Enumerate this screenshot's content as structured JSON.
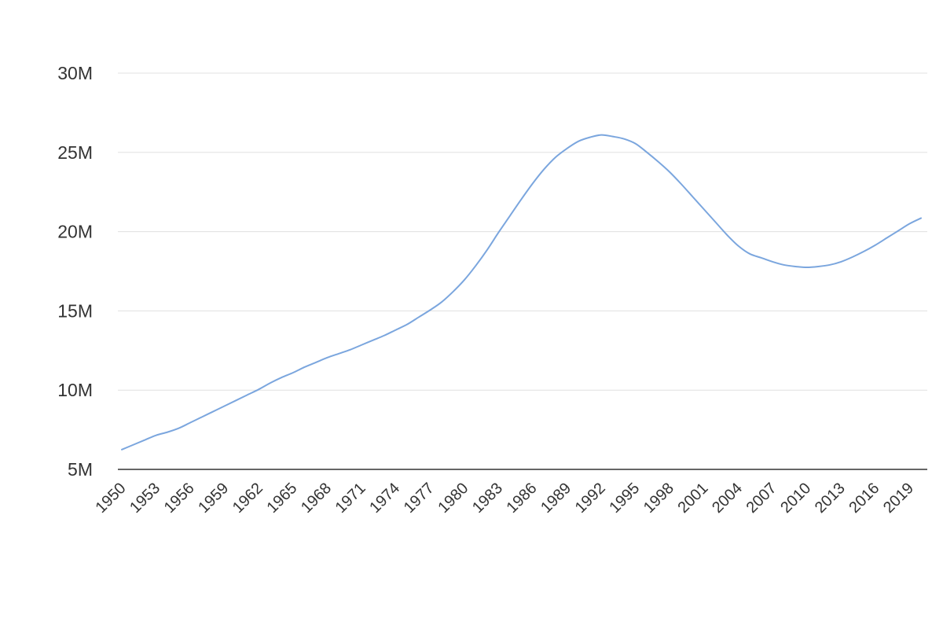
{
  "chart_data": {
    "type": "line",
    "title": "",
    "xlabel": "",
    "ylabel": "",
    "x": [
      1950,
      1951,
      1952,
      1953,
      1954,
      1955,
      1956,
      1957,
      1958,
      1959,
      1960,
      1961,
      1962,
      1963,
      1964,
      1965,
      1966,
      1967,
      1968,
      1969,
      1970,
      1971,
      1972,
      1973,
      1974,
      1975,
      1976,
      1977,
      1978,
      1979,
      1980,
      1981,
      1982,
      1983,
      1984,
      1985,
      1986,
      1987,
      1988,
      1989,
      1990,
      1991,
      1992,
      1993,
      1994,
      1995,
      1996,
      1997,
      1998,
      1999,
      2000,
      2001,
      2002,
      2003,
      2004,
      2005,
      2006,
      2007,
      2008,
      2009,
      2010,
      2011,
      2012,
      2013,
      2014,
      2015,
      2016,
      2017,
      2018,
      2019,
      2020
    ],
    "series": [
      {
        "values": [
          6.25,
          6.55,
          6.85,
          7.15,
          7.35,
          7.6,
          7.95,
          8.3,
          8.65,
          9.0,
          9.35,
          9.7,
          10.05,
          10.45,
          10.8,
          11.1,
          11.45,
          11.75,
          12.05,
          12.3,
          12.55,
          12.85,
          13.15,
          13.45,
          13.8,
          14.15,
          14.6,
          15.05,
          15.55,
          16.2,
          16.95,
          17.85,
          18.85,
          19.95,
          21.0,
          22.05,
          23.05,
          23.95,
          24.7,
          25.25,
          25.7,
          25.95,
          26.1,
          26.0,
          25.85,
          25.55,
          25.0,
          24.4,
          23.75,
          23.0,
          22.2,
          21.4,
          20.6,
          19.8,
          19.1,
          18.6,
          18.35,
          18.1,
          17.9,
          17.8,
          17.75,
          17.8,
          17.9,
          18.1,
          18.4,
          18.75,
          19.15,
          19.6,
          20.05,
          20.5,
          20.85
        ]
      }
    ],
    "x_tick_labels": [
      "1950",
      "1953",
      "1956",
      "1959",
      "1962",
      "1965",
      "1968",
      "1971",
      "1974",
      "1977",
      "1980",
      "1983",
      "1986",
      "1989",
      "1992",
      "1995",
      "1998",
      "2001",
      "2004",
      "2007",
      "2010",
      "2013",
      "2016",
      "2019"
    ],
    "y_ticks": [
      5,
      10,
      15,
      20,
      25,
      30
    ],
    "y_tick_labels": [
      "5M",
      "10M",
      "15M",
      "20M",
      "25M",
      "30M"
    ],
    "ylim": [
      5,
      30
    ],
    "xlim": [
      1950,
      2020
    ],
    "grid": true,
    "line_color": "#7ba6de",
    "grid_color": "#e0e0e0",
    "axis_color": "#333333"
  }
}
